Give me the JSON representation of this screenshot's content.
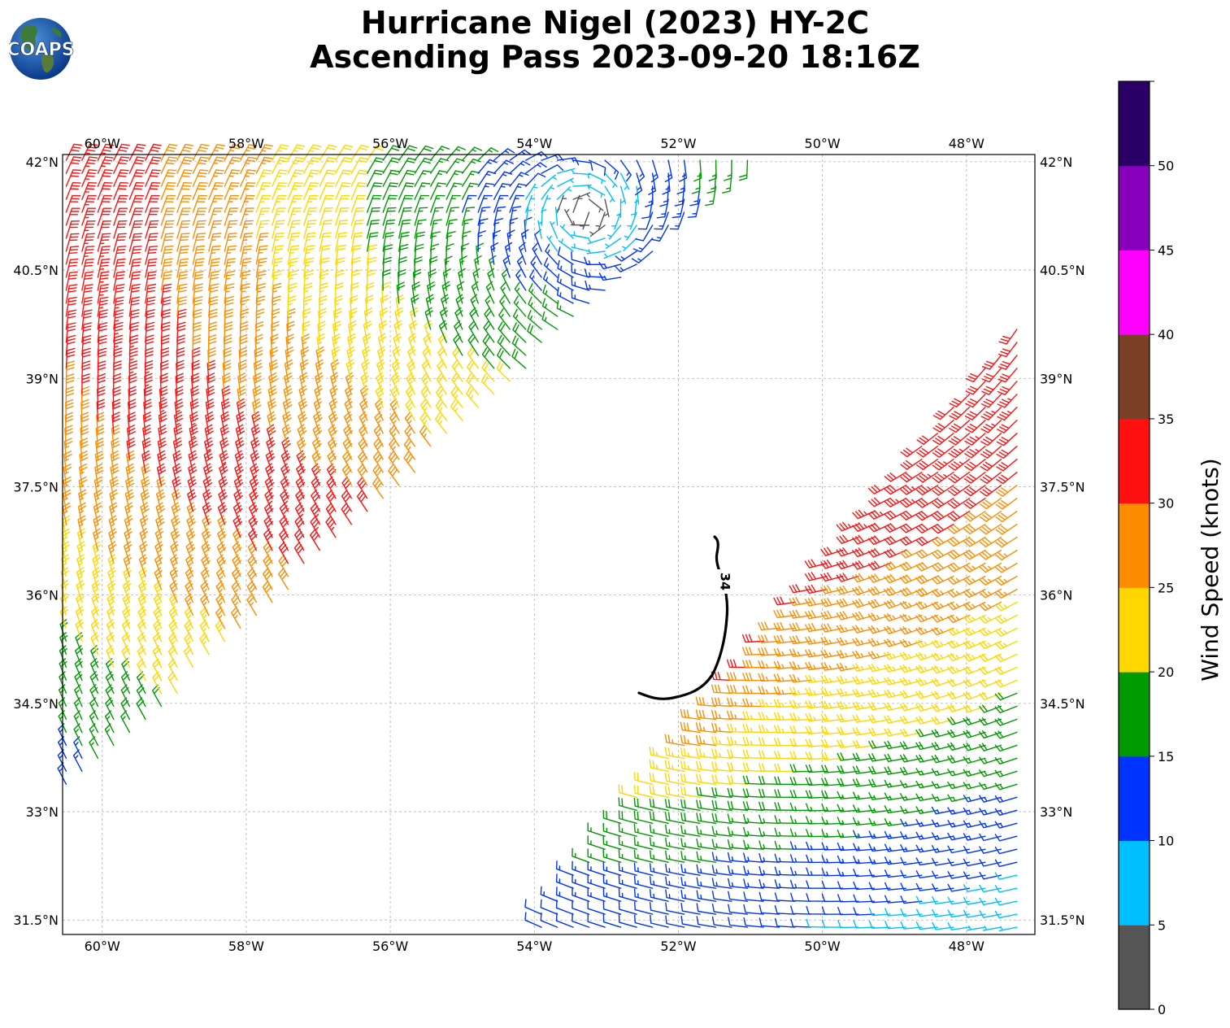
{
  "header": {
    "title_line1": "Hurricane Nigel (2023) HY-2C",
    "title_line2": "Ascending Pass 2023-09-20 18:16Z"
  },
  "logo": {
    "text": "COAPS",
    "icon": "globe-icon"
  },
  "map": {
    "lon_labels": [
      "60°W",
      "58°W",
      "56°W",
      "54°W",
      "52°W",
      "50°W",
      "48°W"
    ],
    "lat_labels": [
      "42°N",
      "40.5°N",
      "39°N",
      "37.5°N",
      "36°N",
      "34.5°N",
      "33°N",
      "31.5°N"
    ],
    "lon_range": [
      -60.55,
      -47.05
    ],
    "lat_range": [
      31.3,
      42.1
    ],
    "grid": true,
    "contour_label": "34",
    "storm_center": {
      "lon": -53.3,
      "lat": 41.3
    }
  },
  "colorbar": {
    "title": "Wind Speed (knots)",
    "tick_labels": [
      "0",
      "5",
      "10",
      "15",
      "20",
      "25",
      "30",
      "35",
      "40",
      "45",
      "50"
    ],
    "bins": [
      {
        "min": 0,
        "max": 5,
        "color": "#555555"
      },
      {
        "min": 5,
        "max": 10,
        "color": "#00bfff"
      },
      {
        "min": 10,
        "max": 15,
        "color": "#0033ff"
      },
      {
        "min": 15,
        "max": 20,
        "color": "#009900"
      },
      {
        "min": 20,
        "max": 25,
        "color": "#ffd700"
      },
      {
        "min": 25,
        "max": 30,
        "color": "#ff8c00"
      },
      {
        "min": 30,
        "max": 35,
        "color": "#ff1111"
      },
      {
        "min": 35,
        "max": 40,
        "color": "#7b3f28"
      },
      {
        "min": 40,
        "max": 45,
        "color": "#ff00ff"
      },
      {
        "min": 45,
        "max": 50,
        "color": "#8800bb"
      },
      {
        "min": 50,
        "max": 55,
        "color": "#2a0066"
      }
    ]
  }
}
